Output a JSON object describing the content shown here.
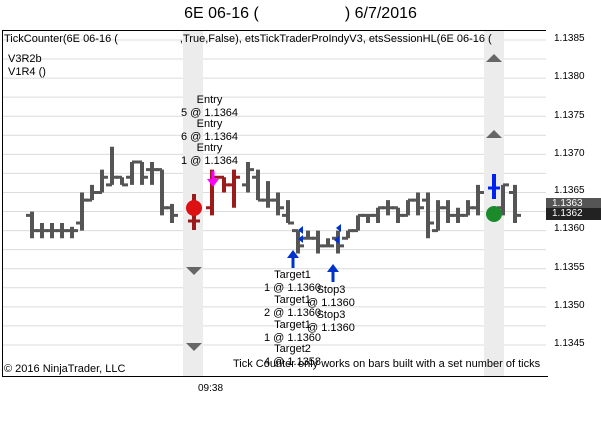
{
  "title": {
    "instrument": "6E 06-16 (",
    "close_paren": ")",
    "date": "6/7/2016"
  },
  "chart": {
    "indicator_header": "TickCounter(6E 06-16 (",
    "indicator_header_rest": ",True,False), etsTickTraderProIndyV3, etsSessionHL(6E 06-16 (",
    "version_line1": "V3R2b",
    "version_line2": "V1R4 ()",
    "copyright": "© 2016 NinjaTrader, LLC",
    "tick_notice": "Tick Counter only works on bars built with a set number of ticks",
    "time_label": "09:38"
  },
  "price_axis": {
    "ticks": [
      "1.1385",
      "1.1380",
      "1.1375",
      "1.1370",
      "1.1365",
      "1.1360",
      "1.1355",
      "1.1350",
      "1.1345"
    ],
    "badge_upper": "1.1363",
    "badge_lower": "1.1362"
  },
  "signals": {
    "entries": [
      {
        "label": "Entry",
        "detail": "5 @ 1.1364"
      },
      {
        "label": "Entry",
        "detail": "6 @ 1.1364"
      },
      {
        "label": "Entry",
        "detail": "1 @ 1.1364"
      }
    ],
    "exits": [
      {
        "label": "Target1",
        "detail": "1 @ 1.1360"
      },
      {
        "label": "Stop3",
        "detail": "@ 1.1360"
      },
      {
        "label": "Target1",
        "detail": "2 @ 1.1360"
      },
      {
        "label": "Stop3",
        "detail": "@ 1.1360"
      },
      {
        "label": "Target1",
        "detail": "1 @ 1.1360"
      },
      {
        "label": "Target2",
        "detail": "4 @ 1.1358"
      }
    ]
  },
  "colors": {
    "bar": "#555555",
    "bar_red": "#9b1b1b",
    "entry_arrow": "#ff00ff",
    "exit_arrow": "#0033cc",
    "session_band": "#ececec",
    "grid": "#dcdcdc",
    "marker_red": "#dd1111",
    "marker_green": "#1a8a2a",
    "badge_dark": "#333333"
  }
}
